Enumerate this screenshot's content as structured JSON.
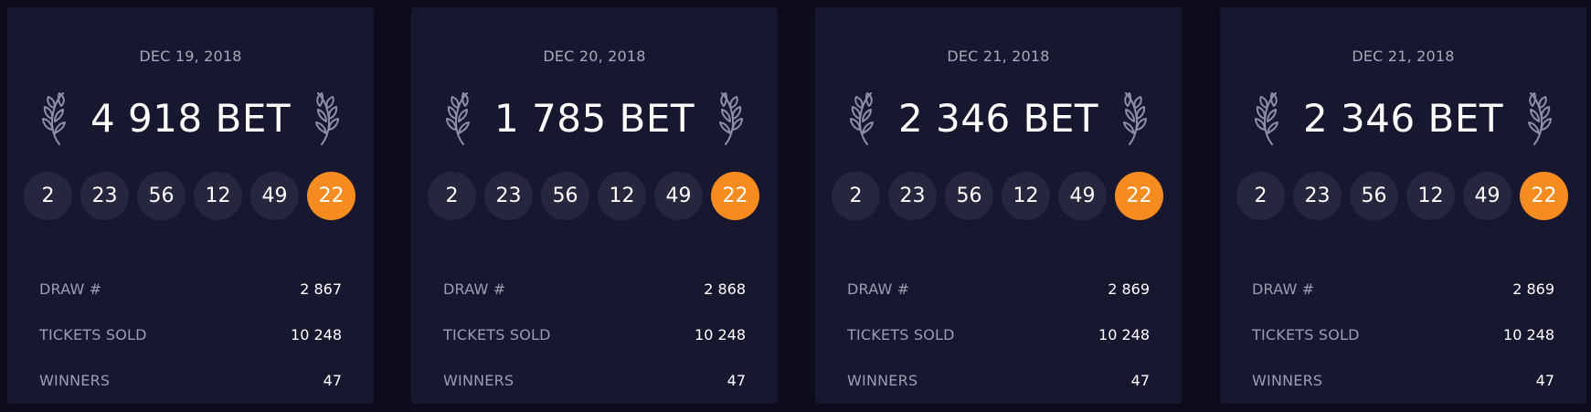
{
  "colors": {
    "background": "#0c0c1c",
    "card": "#17172f",
    "ball": "#26263f",
    "bonus_ball": "#f68b1f",
    "muted_text": "#a8a8bc"
  },
  "icons": {
    "left": "laurel-left-icon",
    "right": "laurel-right-icon"
  },
  "cards": [
    {
      "date": "DEC 19, 2018",
      "bet": "4 918 BET",
      "numbers": [
        "2",
        "23",
        "56",
        "12",
        "49"
      ],
      "bonus": "22",
      "stats": [
        {
          "label": "DRAW #",
          "value": "2 867"
        },
        {
          "label": "TICKETS SOLD",
          "value": "10 248"
        },
        {
          "label": "WINNERS",
          "value": "47"
        }
      ]
    },
    {
      "date": "DEC 20, 2018",
      "bet": "1 785 BET",
      "numbers": [
        "2",
        "23",
        "56",
        "12",
        "49"
      ],
      "bonus": "22",
      "stats": [
        {
          "label": "DRAW #",
          "value": "2 868"
        },
        {
          "label": "TICKETS SOLD",
          "value": "10 248"
        },
        {
          "label": "WINNERS",
          "value": "47"
        }
      ]
    },
    {
      "date": "DEC 21, 2018",
      "bet": "2 346 BET",
      "numbers": [
        "2",
        "23",
        "56",
        "12",
        "49"
      ],
      "bonus": "22",
      "stats": [
        {
          "label": "DRAW #",
          "value": "2 869"
        },
        {
          "label": "TICKETS SOLD",
          "value": "10 248"
        },
        {
          "label": "WINNERS",
          "value": "47"
        }
      ]
    },
    {
      "date": "DEC 21, 2018",
      "bet": "2 346 BET",
      "numbers": [
        "2",
        "23",
        "56",
        "12",
        "49"
      ],
      "bonus": "22",
      "stats": [
        {
          "label": "DRAW #",
          "value": "2 869"
        },
        {
          "label": "TICKETS SOLD",
          "value": "10 248"
        },
        {
          "label": "WINNERS",
          "value": "47"
        }
      ]
    }
  ]
}
